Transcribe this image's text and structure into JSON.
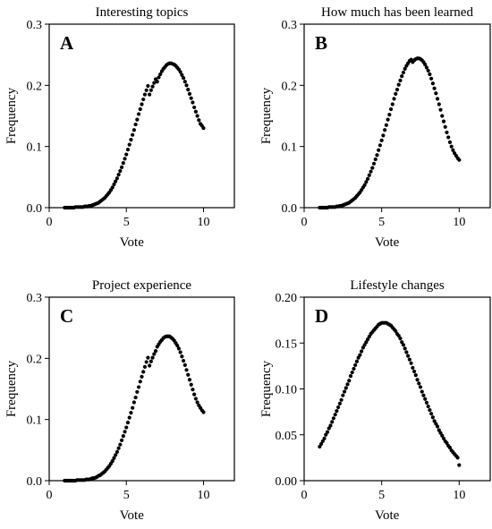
{
  "colors": {
    "points": "#000000",
    "frame": "#000000",
    "background": "#ffffff"
  },
  "chart_data": [
    {
      "type": "scatter",
      "panel_label": "A",
      "title": "Interesting topics",
      "xlabel": "Vote",
      "ylabel": "Frequency",
      "xlim": [
        0,
        12
      ],
      "ylim": [
        0,
        0.3
      ],
      "x_ticks": [
        0,
        5,
        10
      ],
      "x_tick_labels": [
        "0",
        "5",
        "10"
      ],
      "y_ticks": [
        0,
        0.1,
        0.2,
        0.3
      ],
      "y_tick_labels": [
        "0.0",
        "0.1",
        "0.2",
        "0.3"
      ],
      "grid": false,
      "legend": "none",
      "series": [
        {
          "x": [
            1.0,
            1.1,
            1.2,
            1.3,
            1.4,
            1.5,
            1.6,
            1.7,
            1.8,
            1.9,
            2.0,
            2.1,
            2.2,
            2.3,
            2.4,
            2.5,
            2.6,
            2.7,
            2.8,
            2.9,
            3.0,
            3.1,
            3.2,
            3.3,
            3.4,
            3.5,
            3.6,
            3.7,
            3.8,
            3.9,
            4.0,
            4.1,
            4.2,
            4.3,
            4.4,
            4.5,
            4.6,
            4.7,
            4.8,
            4.9,
            5.0,
            5.1,
            5.2,
            5.3,
            5.4,
            5.5,
            5.6,
            5.7,
            5.8,
            5.9,
            6.0,
            6.1,
            6.2,
            6.3,
            6.4,
            6.5,
            6.6,
            6.7,
            6.8,
            6.9,
            7.0,
            7.1,
            7.2,
            7.3,
            7.4,
            7.5,
            7.6,
            7.7,
            7.8,
            7.9,
            8.0,
            8.1,
            8.2,
            8.3,
            8.4,
            8.5,
            8.6,
            8.7,
            8.8,
            8.9,
            9.0,
            9.1,
            9.2,
            9.3,
            9.4,
            9.5,
            9.6,
            9.7,
            9.8,
            9.9,
            10.0
          ],
          "y": [
            0.0,
            0.0,
            0.0,
            0.0,
            0.0,
            0.0,
            0.0,
            0.001,
            0.001,
            0.001,
            0.001,
            0.001,
            0.001,
            0.002,
            0.002,
            0.002,
            0.003,
            0.003,
            0.004,
            0.005,
            0.006,
            0.007,
            0.008,
            0.01,
            0.012,
            0.014,
            0.016,
            0.019,
            0.022,
            0.025,
            0.029,
            0.033,
            0.038,
            0.043,
            0.048,
            0.054,
            0.06,
            0.066,
            0.073,
            0.08,
            0.087,
            0.095,
            0.103,
            0.111,
            0.119,
            0.127,
            0.136,
            0.144,
            0.153,
            0.161,
            0.169,
            0.177,
            0.185,
            0.192,
            0.199,
            0.185,
            0.192,
            0.198,
            0.204,
            0.21,
            0.206,
            0.213,
            0.218,
            0.223,
            0.227,
            0.23,
            0.233,
            0.235,
            0.236,
            0.236,
            0.235,
            0.234,
            0.232,
            0.229,
            0.226,
            0.222,
            0.217,
            0.212,
            0.206,
            0.2,
            0.193,
            0.186,
            0.179,
            0.172,
            0.164,
            0.157,
            0.15,
            0.143,
            0.137,
            0.134,
            0.13
          ]
        }
      ]
    },
    {
      "type": "scatter",
      "panel_label": "B",
      "title": "How much has been learned",
      "xlabel": "Vote",
      "ylabel": "Frequency",
      "xlim": [
        0,
        12
      ],
      "ylim": [
        0,
        0.3
      ],
      "x_ticks": [
        0,
        5,
        10
      ],
      "x_tick_labels": [
        "0",
        "5",
        "10"
      ],
      "y_ticks": [
        0,
        0.1,
        0.2,
        0.3
      ],
      "y_tick_labels": [
        "0.0",
        "0.1",
        "0.2",
        "0.3"
      ],
      "grid": false,
      "legend": "none",
      "series": [
        {
          "x": [
            1.0,
            1.1,
            1.2,
            1.3,
            1.4,
            1.5,
            1.6,
            1.7,
            1.8,
            1.9,
            2.0,
            2.1,
            2.2,
            2.3,
            2.4,
            2.5,
            2.6,
            2.7,
            2.8,
            2.9,
            3.0,
            3.1,
            3.2,
            3.3,
            3.4,
            3.5,
            3.6,
            3.7,
            3.8,
            3.9,
            4.0,
            4.1,
            4.2,
            4.3,
            4.4,
            4.5,
            4.6,
            4.7,
            4.8,
            4.9,
            5.0,
            5.1,
            5.2,
            5.3,
            5.4,
            5.5,
            5.6,
            5.7,
            5.8,
            5.9,
            6.0,
            6.1,
            6.2,
            6.3,
            6.4,
            6.5,
            6.6,
            6.7,
            6.8,
            6.9,
            7.0,
            7.1,
            7.2,
            7.3,
            7.4,
            7.5,
            7.6,
            7.7,
            7.8,
            7.9,
            8.0,
            8.1,
            8.2,
            8.3,
            8.4,
            8.5,
            8.6,
            8.7,
            8.8,
            8.9,
            9.0,
            9.1,
            9.2,
            9.3,
            9.4,
            9.5,
            9.6,
            9.7,
            9.8,
            9.9,
            10.0
          ],
          "y": [
            0.0,
            0.0,
            0.0,
            0.0,
            0.0,
            0.0,
            0.001,
            0.001,
            0.001,
            0.001,
            0.001,
            0.002,
            0.002,
            0.003,
            0.003,
            0.004,
            0.005,
            0.006,
            0.007,
            0.008,
            0.01,
            0.012,
            0.014,
            0.016,
            0.019,
            0.022,
            0.025,
            0.029,
            0.033,
            0.037,
            0.042,
            0.047,
            0.053,
            0.059,
            0.065,
            0.072,
            0.079,
            0.086,
            0.094,
            0.102,
            0.11,
            0.118,
            0.127,
            0.135,
            0.144,
            0.152,
            0.161,
            0.169,
            0.178,
            0.186,
            0.193,
            0.201,
            0.208,
            0.215,
            0.221,
            0.227,
            0.232,
            0.236,
            0.24,
            0.242,
            0.238,
            0.241,
            0.243,
            0.244,
            0.244,
            0.243,
            0.241,
            0.238,
            0.234,
            0.229,
            0.224,
            0.218,
            0.211,
            0.203,
            0.195,
            0.187,
            0.178,
            0.169,
            0.16,
            0.15,
            0.141,
            0.132,
            0.123,
            0.115,
            0.107,
            0.1,
            0.094,
            0.089,
            0.085,
            0.081,
            0.078
          ]
        }
      ]
    },
    {
      "type": "scatter",
      "panel_label": "C",
      "title": "Project experience",
      "xlabel": "Vote",
      "ylabel": "Frequency",
      "xlim": [
        0,
        12
      ],
      "ylim": [
        0,
        0.3
      ],
      "x_ticks": [
        0,
        5,
        10
      ],
      "x_tick_labels": [
        "0",
        "5",
        "10"
      ],
      "y_ticks": [
        0,
        0.1,
        0.2,
        0.3
      ],
      "y_tick_labels": [
        "0.0",
        "0.1",
        "0.2",
        "0.3"
      ],
      "grid": false,
      "legend": "none",
      "series": [
        {
          "x": [
            1.0,
            1.1,
            1.2,
            1.3,
            1.4,
            1.5,
            1.6,
            1.7,
            1.8,
            1.9,
            2.0,
            2.1,
            2.2,
            2.3,
            2.4,
            2.5,
            2.6,
            2.7,
            2.8,
            2.9,
            3.0,
            3.1,
            3.2,
            3.3,
            3.4,
            3.5,
            3.6,
            3.7,
            3.8,
            3.9,
            4.0,
            4.1,
            4.2,
            4.3,
            4.4,
            4.5,
            4.6,
            4.7,
            4.8,
            4.9,
            5.0,
            5.1,
            5.2,
            5.3,
            5.4,
            5.5,
            5.6,
            5.7,
            5.8,
            5.9,
            6.0,
            6.1,
            6.2,
            6.3,
            6.4,
            6.5,
            6.6,
            6.7,
            6.8,
            6.9,
            7.0,
            7.1,
            7.2,
            7.3,
            7.4,
            7.5,
            7.6,
            7.7,
            7.8,
            7.9,
            8.0,
            8.1,
            8.2,
            8.3,
            8.4,
            8.5,
            8.6,
            8.7,
            8.8,
            8.9,
            9.0,
            9.1,
            9.2,
            9.3,
            9.4,
            9.5,
            9.6,
            9.7,
            9.8,
            9.9,
            10.0
          ],
          "y": [
            0.0,
            0.0,
            0.0,
            0.0,
            0.0,
            0.0,
            0.0,
            0.0,
            0.001,
            0.001,
            0.001,
            0.001,
            0.001,
            0.001,
            0.002,
            0.002,
            0.002,
            0.003,
            0.004,
            0.004,
            0.005,
            0.006,
            0.008,
            0.009,
            0.011,
            0.013,
            0.015,
            0.018,
            0.021,
            0.024,
            0.028,
            0.032,
            0.037,
            0.042,
            0.047,
            0.053,
            0.059,
            0.066,
            0.073,
            0.08,
            0.087,
            0.095,
            0.103,
            0.111,
            0.119,
            0.128,
            0.136,
            0.145,
            0.153,
            0.162,
            0.17,
            0.178,
            0.186,
            0.194,
            0.201,
            0.188,
            0.195,
            0.201,
            0.207,
            0.212,
            0.219,
            0.223,
            0.227,
            0.23,
            0.233,
            0.235,
            0.236,
            0.236,
            0.236,
            0.234,
            0.232,
            0.229,
            0.225,
            0.221,
            0.216,
            0.21,
            0.203,
            0.196,
            0.189,
            0.181,
            0.173,
            0.165,
            0.157,
            0.149,
            0.141,
            0.134,
            0.128,
            0.123,
            0.119,
            0.115,
            0.112
          ]
        }
      ]
    },
    {
      "type": "scatter",
      "panel_label": "D",
      "title": "Lifestyle changes",
      "xlabel": "Vote",
      "ylabel": "Frequency",
      "xlim": [
        0,
        12
      ],
      "ylim": [
        0,
        0.2
      ],
      "x_ticks": [
        0,
        5,
        10
      ],
      "x_tick_labels": [
        "0",
        "5",
        "10"
      ],
      "y_ticks": [
        0,
        0.05,
        0.1,
        0.15,
        0.2
      ],
      "y_tick_labels": [
        "0.00",
        "0.05",
        "0.10",
        "0.15",
        "0.20"
      ],
      "grid": false,
      "legend": "none",
      "series": [
        {
          "x": [
            1.0,
            1.1,
            1.2,
            1.3,
            1.4,
            1.5,
            1.6,
            1.7,
            1.8,
            1.9,
            2.0,
            2.1,
            2.2,
            2.3,
            2.4,
            2.5,
            2.6,
            2.7,
            2.8,
            2.9,
            3.0,
            3.1,
            3.2,
            3.3,
            3.4,
            3.5,
            3.6,
            3.7,
            3.8,
            3.9,
            4.0,
            4.1,
            4.2,
            4.3,
            4.4,
            4.5,
            4.6,
            4.7,
            4.8,
            4.9,
            5.0,
            5.1,
            5.2,
            5.3,
            5.4,
            5.5,
            5.6,
            5.7,
            5.8,
            5.9,
            6.0,
            6.1,
            6.2,
            6.3,
            6.4,
            6.5,
            6.6,
            6.7,
            6.8,
            6.9,
            7.0,
            7.1,
            7.2,
            7.3,
            7.4,
            7.5,
            7.6,
            7.7,
            7.8,
            7.9,
            8.0,
            8.1,
            8.2,
            8.3,
            8.4,
            8.5,
            8.6,
            8.7,
            8.8,
            8.9,
            9.0,
            9.1,
            9.2,
            9.3,
            9.4,
            9.5,
            9.6,
            9.7,
            9.8,
            9.9,
            10.0
          ],
          "y": [
            0.037,
            0.04,
            0.043,
            0.046,
            0.05,
            0.053,
            0.057,
            0.06,
            0.064,
            0.068,
            0.072,
            0.076,
            0.08,
            0.084,
            0.088,
            0.093,
            0.097,
            0.101,
            0.105,
            0.109,
            0.114,
            0.118,
            0.122,
            0.126,
            0.13,
            0.134,
            0.137,
            0.141,
            0.145,
            0.148,
            0.151,
            0.154,
            0.157,
            0.16,
            0.162,
            0.164,
            0.166,
            0.168,
            0.17,
            0.171,
            0.172,
            0.172,
            0.172,
            0.172,
            0.171,
            0.17,
            0.169,
            0.167,
            0.165,
            0.163,
            0.16,
            0.158,
            0.155,
            0.151,
            0.148,
            0.144,
            0.14,
            0.136,
            0.132,
            0.128,
            0.123,
            0.119,
            0.115,
            0.11,
            0.106,
            0.102,
            0.097,
            0.093,
            0.089,
            0.085,
            0.081,
            0.077,
            0.073,
            0.069,
            0.065,
            0.062,
            0.059,
            0.055,
            0.052,
            0.049,
            0.046,
            0.043,
            0.041,
            0.038,
            0.036,
            0.033,
            0.031,
            0.029,
            0.027,
            0.025,
            0.017
          ]
        }
      ]
    }
  ]
}
